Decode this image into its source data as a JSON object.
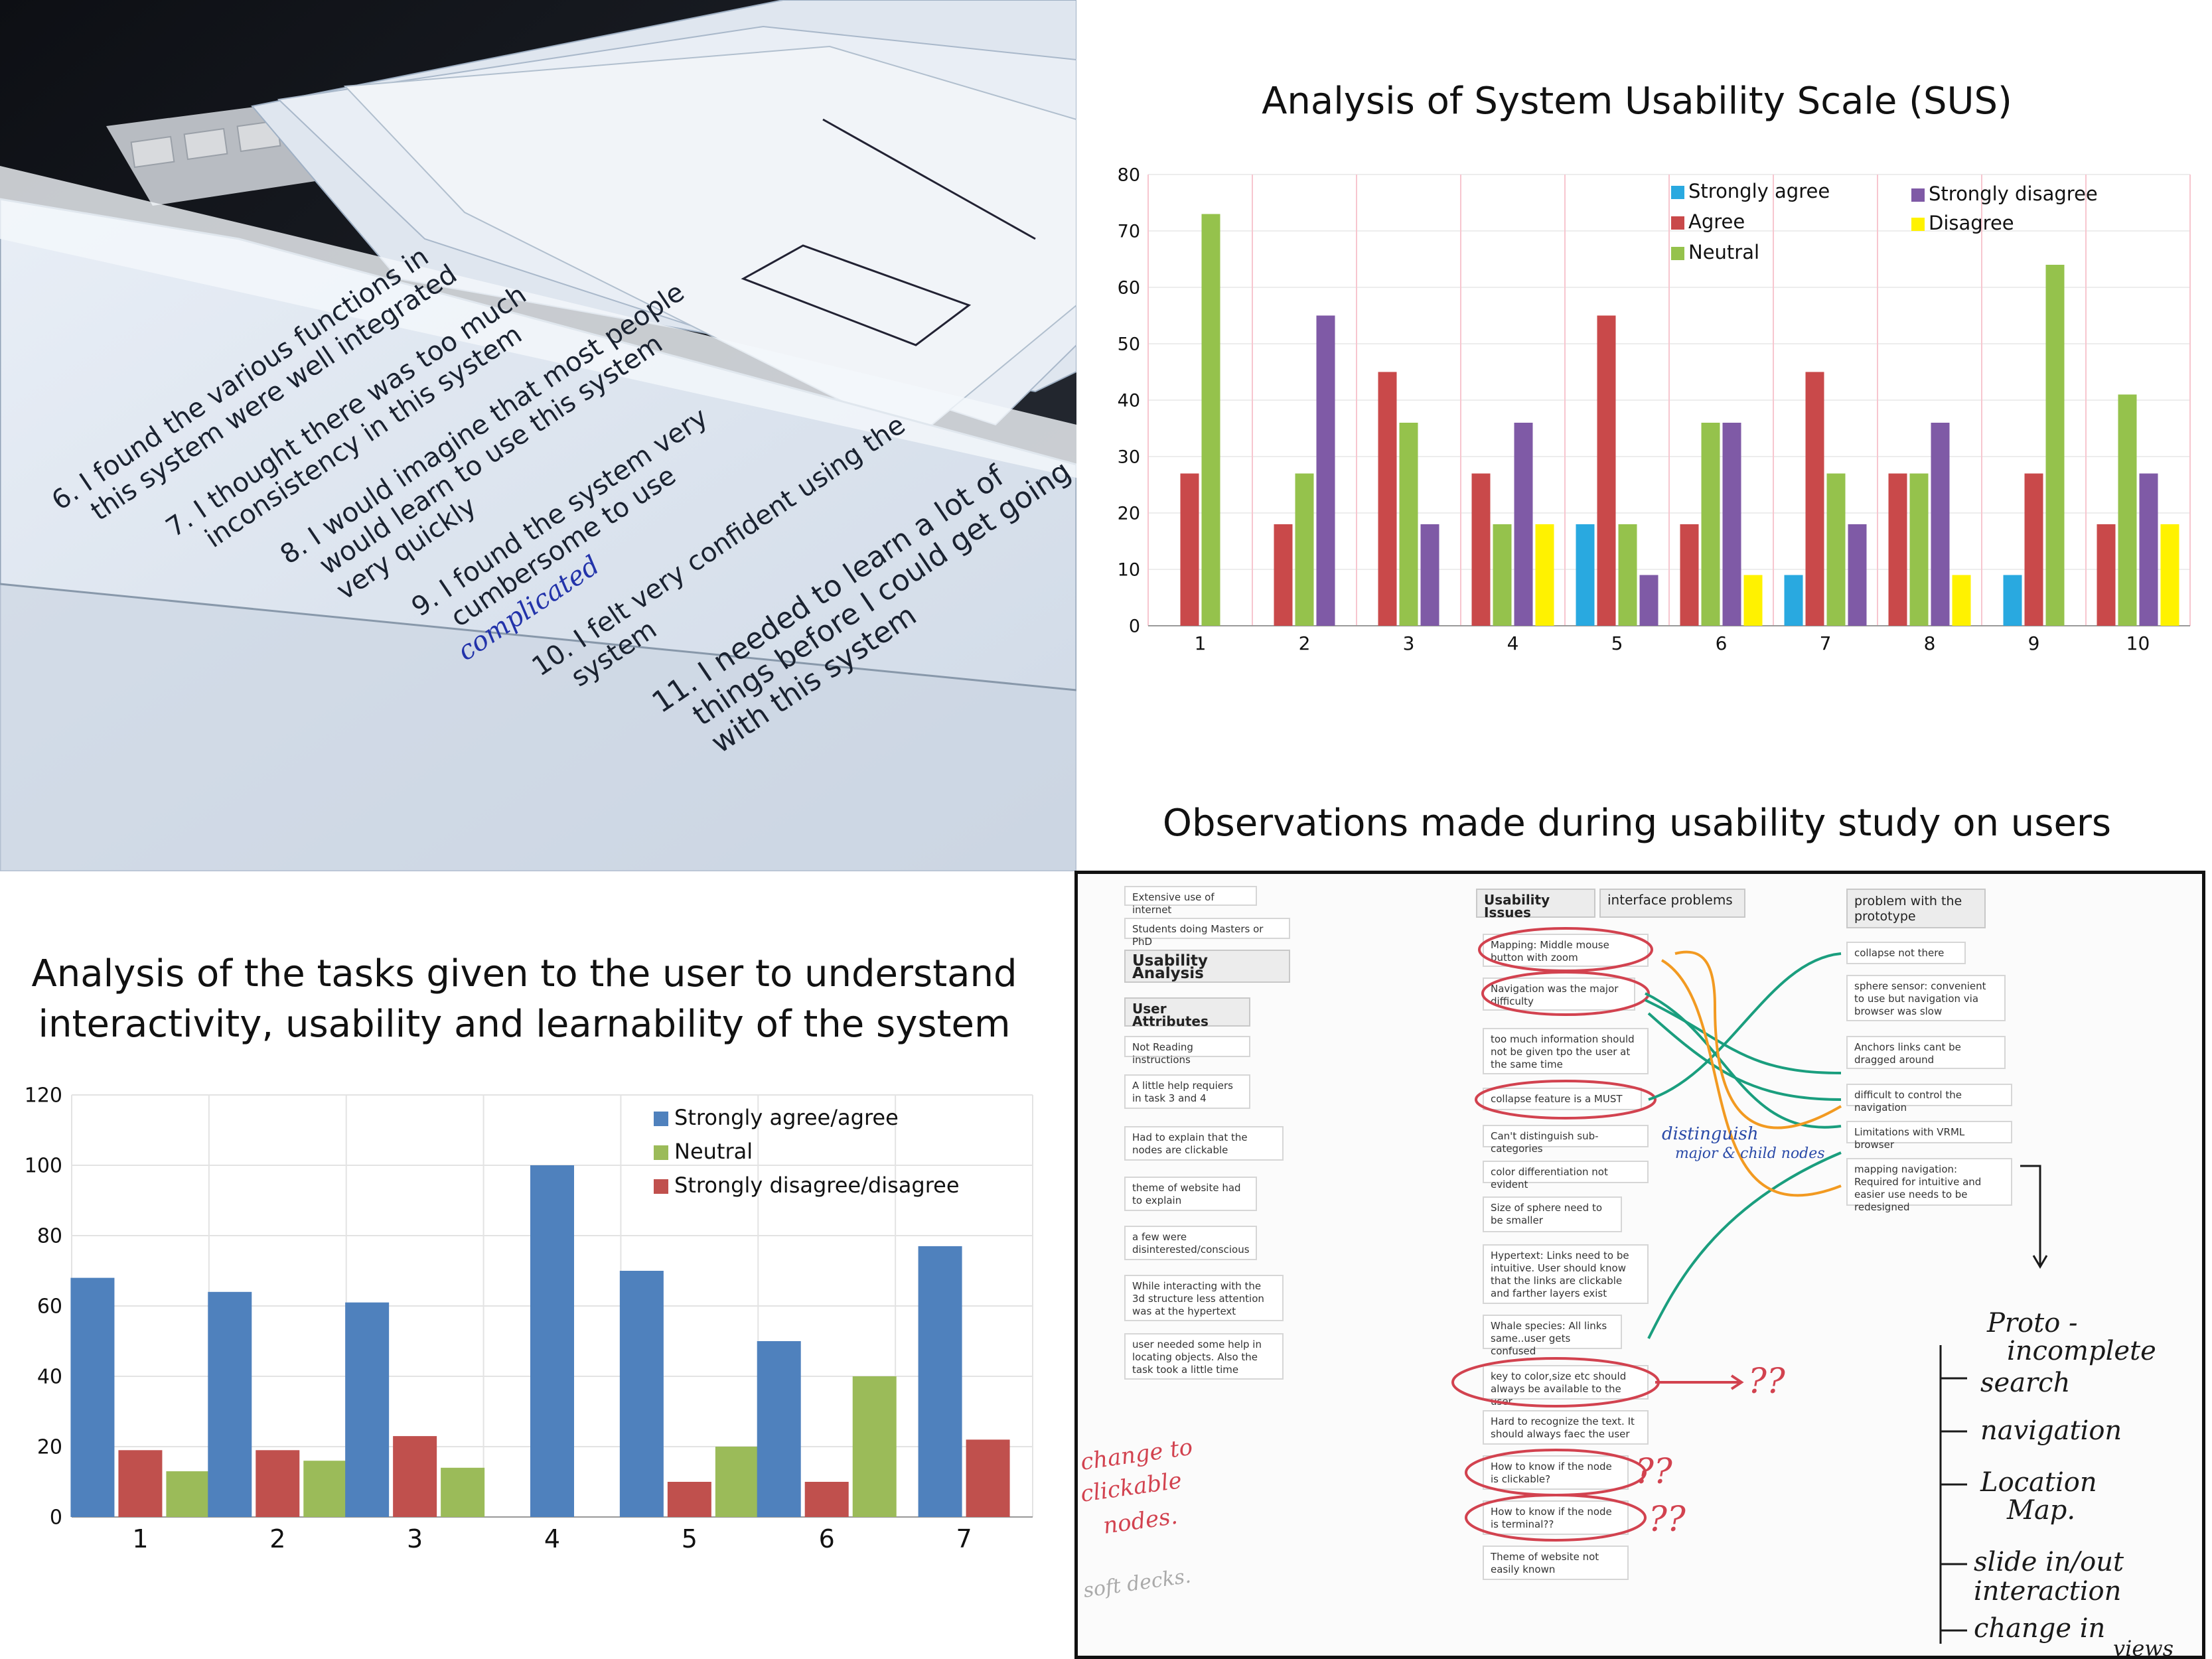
{
  "photo": {
    "lines": [
      "6. I found the various functions in",
      "this system were well integrated",
      "7. I thought there was too much",
      "inconsistency in this system",
      "8. I would imagine that most people",
      "would learn to use this system",
      "very quickly",
      "9. I found the system very",
      "cumbersome to use",
      "complicated",
      "10. I felt very confident using the",
      "system",
      "11. I needed to learn a lot of",
      "things before I could get going",
      "with this system"
    ]
  },
  "sus_chart": {
    "title": "Analysis of System Usability Scale (SUS)",
    "legend": [
      {
        "label": "Strongly agree",
        "color": "#29a9e0"
      },
      {
        "label": "Agree",
        "color": "#c9494a"
      },
      {
        "label": "Neutral",
        "color": "#95c24c"
      },
      {
        "label": "Strongly disagree",
        "color": "#7f5aa6"
      },
      {
        "label": "Disagree",
        "color": "#fff200"
      }
    ]
  },
  "tasks_chart": {
    "title_line1": "Analysis of the tasks given to the user to understand",
    "title_line2": "interactivity, usability and learnability of the system",
    "legend": [
      {
        "label": "Strongly agree/agree",
        "color": "#4f81bd"
      },
      {
        "label": "Neutral",
        "color": "#9bbb59"
      },
      {
        "label": "Strongly disagree/disagree",
        "color": "#c0504d"
      }
    ]
  },
  "chart_data": [
    {
      "type": "bar",
      "title": "Analysis of System Usability Scale (SUS)",
      "categories": [
        "1",
        "2",
        "3",
        "4",
        "5",
        "6",
        "7",
        "8",
        "9",
        "10"
      ],
      "ylim": [
        0,
        80
      ],
      "yticks": [
        0,
        10,
        20,
        30,
        40,
        50,
        60,
        70,
        80
      ],
      "grid": true,
      "legend_position": "top-right",
      "series": [
        {
          "name": "Strongly agree",
          "color": "#29a9e0",
          "values": [
            0,
            0,
            0,
            0,
            18,
            0,
            9,
            0,
            9,
            0
          ]
        },
        {
          "name": "Agree",
          "color": "#c9494a",
          "values": [
            27,
            18,
            45,
            27,
            55,
            18,
            45,
            27,
            27,
            18
          ]
        },
        {
          "name": "Neutral",
          "color": "#95c24c",
          "values": [
            73,
            27,
            36,
            18,
            18,
            36,
            27,
            27,
            64,
            41
          ]
        },
        {
          "name": "Strongly disagree",
          "color": "#7f5aa6",
          "values": [
            0,
            55,
            18,
            36,
            9,
            36,
            18,
            36,
            0,
            27
          ]
        },
        {
          "name": "Disagree",
          "color": "#fff200",
          "values": [
            0,
            0,
            0,
            18,
            0,
            9,
            0,
            9,
            0,
            18
          ]
        }
      ]
    },
    {
      "type": "bar",
      "title": "Analysis of the tasks given to the user to understand interactivity, usability and learnability of the system",
      "categories": [
        "1",
        "2",
        "3",
        "4",
        "5",
        "6",
        "7"
      ],
      "ylim": [
        0,
        120
      ],
      "yticks": [
        0,
        20,
        40,
        60,
        80,
        100,
        120
      ],
      "grid": true,
      "legend_position": "top-right",
      "series": [
        {
          "name": "Strongly agree/agree",
          "color": "#4f81bd",
          "values": [
            68,
            64,
            61,
            100,
            70,
            50,
            77
          ]
        },
        {
          "name": "Strongly disagree/disagree",
          "color": "#c0504d",
          "values": [
            19,
            19,
            23,
            0,
            10,
            10,
            22
          ]
        },
        {
          "name": "Neutral",
          "color": "#9bbb59",
          "values": [
            13,
            16,
            14,
            0,
            20,
            40,
            0
          ]
        }
      ]
    }
  ],
  "observations": {
    "title": "Observations made during usability study on users",
    "left_cards": [
      "Extensive use of internet",
      "Students doing Masters or PhD",
      "Usability Analysis",
      "User Attributes",
      "Not Reading instructions",
      "A little help requiers in task 3 and 4",
      "Had to explain that the nodes are clickable",
      "theme of website had to explain",
      "a few were disinterested/conscious",
      "While interacting with the 3d structure less attention was at the hypertext",
      "user needed some help in locating objects. Also the task took a little time"
    ],
    "mid_headers": [
      "Usability Issues",
      "interface problems"
    ],
    "mid_cards": [
      "Mapping: Middle mouse button with zoom",
      "Navigation was the major difficulty",
      "too much information should not be given tpo the user at the same time",
      "collapse feature is a MUST",
      "Can't distinguish sub-categories",
      "color differentiation not evident",
      "Size of sphere need to be smaller",
      "Hypertext: Links need to be intuitive. User should know that the links are clickable and farther layers exist",
      "Whale species: All links same..user gets confused",
      "key to color,size etc should always be available to the user",
      "Hard to recognize the text. It should always faec the user",
      "How to know if the node is clickable?",
      "How to know if the node is terminal??",
      "Theme of website not easily known"
    ],
    "right_header": "problem with the prototype",
    "right_cards": [
      "collapse not there",
      "sphere sensor: convenient to use but navigation via browser was slow",
      "Anchors links cant be dragged around",
      "difficult to control the navigation",
      "Limitations with VRML browser",
      "mapping navigation: Required for intuitive and easier use needs to be redesigned"
    ],
    "handwritten": {
      "distinguish": "distinguish",
      "distinguish2": "major & child nodes",
      "qq1": "??",
      "qq2": "??",
      "qq3": "??",
      "left1": "change to",
      "left2": "clickable",
      "left3": "nodes.",
      "left4": "soft decks.",
      "r1": "Proto -",
      "r2": "incomplete",
      "r3": "search",
      "r4": "navigation",
      "r5": "Location",
      "r6": "Map.",
      "r7": "slide in/out",
      "r8": "interaction",
      "r9": "change in",
      "r10": "views"
    }
  }
}
